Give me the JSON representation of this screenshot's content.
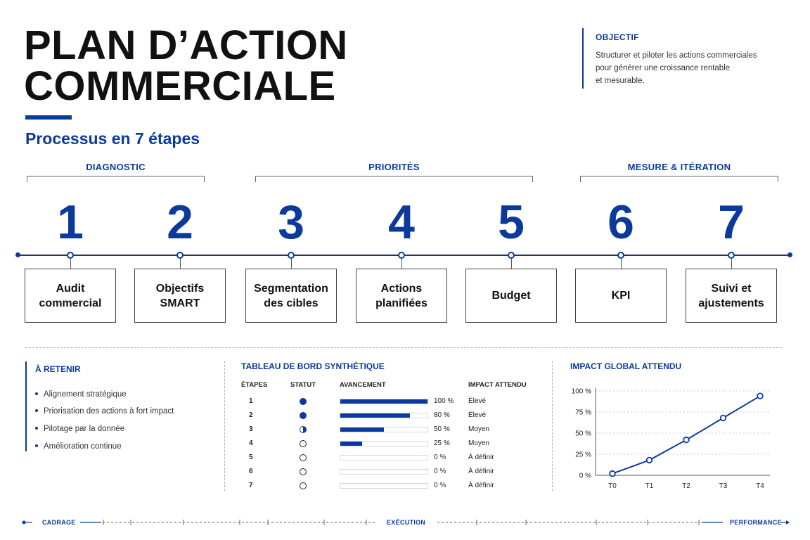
{
  "title": {
    "line1": "PLAN D’ACTION",
    "line2": "COMMERCIALE"
  },
  "subtitle": "Processus en 7 étapes",
  "objectif": {
    "heading": "OBJECTIF",
    "text": "Structurer et piloter les actions commerciales\npour générer une croissance rentable\net mesurable."
  },
  "phases": [
    "DIAGNOSTIC",
    "PRIORITÉS",
    "MESURE & ITÉRATION"
  ],
  "steps": [
    {
      "num": "1",
      "label": "Audit\ncommercial"
    },
    {
      "num": "2",
      "label": "Objectifs\nSMART"
    },
    {
      "num": "3",
      "label": "Segmentation\ndes cibles"
    },
    {
      "num": "4",
      "label": "Actions\nplanifiées"
    },
    {
      "num": "5",
      "label": "Budget"
    },
    {
      "num": "6",
      "label": "KPI"
    },
    {
      "num": "7",
      "label": "Suivi et\najustements"
    }
  ],
  "retenir": {
    "heading": "À RETENIR",
    "items": [
      "Alignement stratégique",
      "Priorisation des actions à fort impact",
      "Pilotage par la donnée",
      "Amélioration continue"
    ]
  },
  "tableau": {
    "heading": "TABLEAU DE BORD SYNTHÉTIQUE",
    "headers": [
      "ÉTAPES",
      "STATUT",
      "AVANCEMENT",
      "IMPACT ATTENDU"
    ],
    "rows": [
      {
        "etape": "1",
        "statut": "full",
        "progress": 1.0,
        "pct": "100 %",
        "impact": "Élevé"
      },
      {
        "etape": "2",
        "statut": "full",
        "progress": 0.8,
        "pct": "80 %",
        "impact": "Élevé"
      },
      {
        "etape": "3",
        "statut": "half",
        "progress": 0.5,
        "pct": "50 %",
        "impact": "Moyen"
      },
      {
        "etape": "4",
        "statut": "empty",
        "progress": 0.25,
        "pct": "25 %",
        "impact": "Moyen"
      },
      {
        "etape": "5",
        "statut": "empty",
        "progress": 0.0,
        "pct": "0 %",
        "impact": "À définir"
      },
      {
        "etape": "6",
        "statut": "empty",
        "progress": 0.0,
        "pct": "0 %",
        "impact": "À définir"
      },
      {
        "etape": "7",
        "statut": "empty",
        "progress": 0.0,
        "pct": "0 %",
        "impact": "À définir"
      }
    ]
  },
  "impact": {
    "heading": "IMPACT GLOBAL ATTENDU"
  },
  "chart_data": {
    "type": "line",
    "title": "",
    "categories": [
      "T0",
      "T1",
      "T2",
      "T3",
      "T4"
    ],
    "values": [
      2,
      18,
      42,
      68,
      94
    ],
    "ylim": [
      0,
      100
    ],
    "yticks": [
      "0 %",
      "25 %",
      "50 %",
      "75 %",
      "100 %"
    ],
    "grid": true,
    "color": "#0c3a9c"
  },
  "footer": [
    "CADRAGE",
    "EXÉCUTION",
    "PERFORMANCE"
  ],
  "colors": {
    "accent": "#0c3a9c"
  }
}
